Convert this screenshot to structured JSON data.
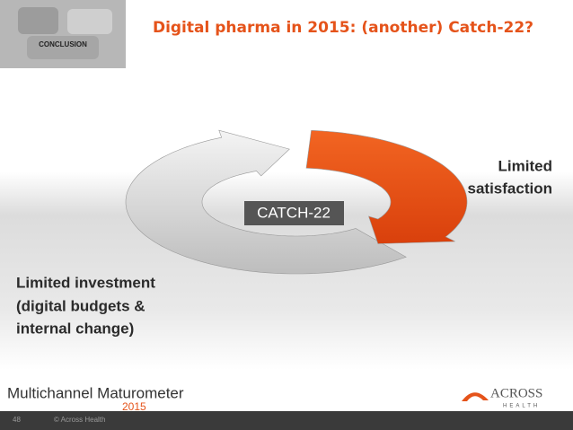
{
  "header": {
    "badge": "CONCLUSION",
    "title": "Digital pharma in 2015: (another) Catch-22?"
  },
  "diagram": {
    "center_label": "CATCH-22",
    "right_label": [
      "Limited",
      "satisfaction"
    ],
    "left_label": [
      "Limited investment",
      "(digital budgets &",
      "internal change)"
    ]
  },
  "footer": {
    "brand": "Multichannel Maturometer",
    "brand_year": "2015",
    "logo": "ACROSS",
    "logo_sub": "HEALTH",
    "page": "48",
    "copyright": "© Across Health"
  }
}
